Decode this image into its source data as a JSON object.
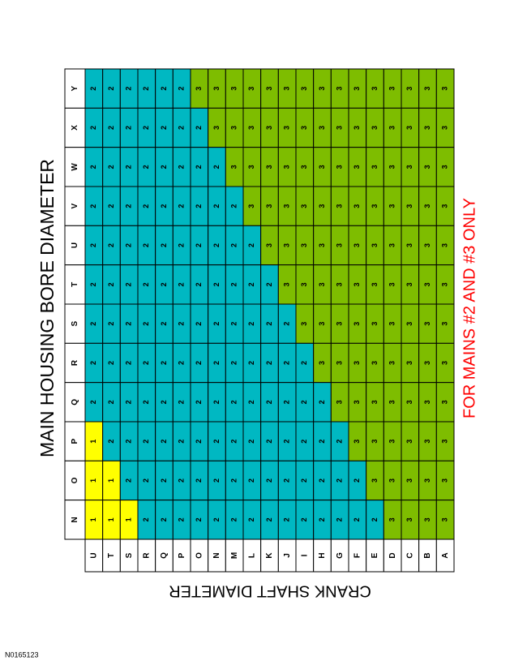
{
  "header": {
    "title": "MAIN HOUSING BORE DIAMETER",
    "note": "FOR MAINS #2 AND #3 ONLY",
    "axis_label": "CRANK SHAFT DIAMETER"
  },
  "footer": {
    "code": "N0165123"
  },
  "table": {
    "columns": [
      "U",
      "T",
      "S",
      "R",
      "Q",
      "P",
      "O",
      "N",
      "M",
      "L",
      "K",
      "J",
      "I",
      "H",
      "G",
      "F",
      "E",
      "D",
      "C",
      "B",
      "A"
    ],
    "rows": [
      {
        "label": "Y",
        "values": [
          2,
          2,
          2,
          2,
          2,
          2,
          3,
          3,
          3,
          3,
          3,
          3,
          3,
          3,
          3,
          3,
          3,
          3,
          3,
          3,
          3
        ]
      },
      {
        "label": "X",
        "values": [
          2,
          2,
          2,
          2,
          2,
          2,
          2,
          3,
          3,
          3,
          3,
          3,
          3,
          3,
          3,
          3,
          3,
          3,
          3,
          3,
          3
        ]
      },
      {
        "label": "W",
        "values": [
          2,
          2,
          2,
          2,
          2,
          2,
          2,
          2,
          3,
          3,
          3,
          3,
          3,
          3,
          3,
          3,
          3,
          3,
          3,
          3,
          3
        ]
      },
      {
        "label": "V",
        "values": [
          2,
          2,
          2,
          2,
          2,
          2,
          2,
          2,
          2,
          3,
          3,
          3,
          3,
          3,
          3,
          3,
          3,
          3,
          3,
          3,
          3
        ]
      },
      {
        "label": "U",
        "values": [
          2,
          2,
          2,
          2,
          2,
          2,
          2,
          2,
          2,
          2,
          3,
          3,
          3,
          3,
          3,
          3,
          3,
          3,
          3,
          3,
          3
        ]
      },
      {
        "label": "T",
        "values": [
          2,
          2,
          2,
          2,
          2,
          2,
          2,
          2,
          2,
          2,
          2,
          3,
          3,
          3,
          3,
          3,
          3,
          3,
          3,
          3,
          3
        ]
      },
      {
        "label": "S",
        "values": [
          2,
          2,
          2,
          2,
          2,
          2,
          2,
          2,
          2,
          2,
          2,
          2,
          3,
          3,
          3,
          3,
          3,
          3,
          3,
          3,
          3
        ]
      },
      {
        "label": "R",
        "values": [
          2,
          2,
          2,
          2,
          2,
          2,
          2,
          2,
          2,
          2,
          2,
          2,
          2,
          3,
          3,
          3,
          3,
          3,
          3,
          3,
          3
        ]
      },
      {
        "label": "Q",
        "values": [
          2,
          2,
          2,
          2,
          2,
          2,
          2,
          2,
          2,
          2,
          2,
          2,
          2,
          2,
          3,
          3,
          3,
          3,
          3,
          3,
          3
        ]
      },
      {
        "label": "P",
        "values": [
          1,
          2,
          2,
          2,
          2,
          2,
          2,
          2,
          2,
          2,
          2,
          2,
          2,
          2,
          2,
          3,
          3,
          3,
          3,
          3,
          3
        ]
      },
      {
        "label": "O",
        "values": [
          1,
          1,
          2,
          2,
          2,
          2,
          2,
          2,
          2,
          2,
          2,
          2,
          2,
          2,
          2,
          2,
          3,
          3,
          3,
          3,
          3
        ]
      },
      {
        "label": "N",
        "values": [
          1,
          1,
          1,
          2,
          2,
          2,
          2,
          2,
          2,
          2,
          2,
          2,
          2,
          2,
          2,
          2,
          2,
          3,
          3,
          3,
          3
        ]
      }
    ]
  }
}
